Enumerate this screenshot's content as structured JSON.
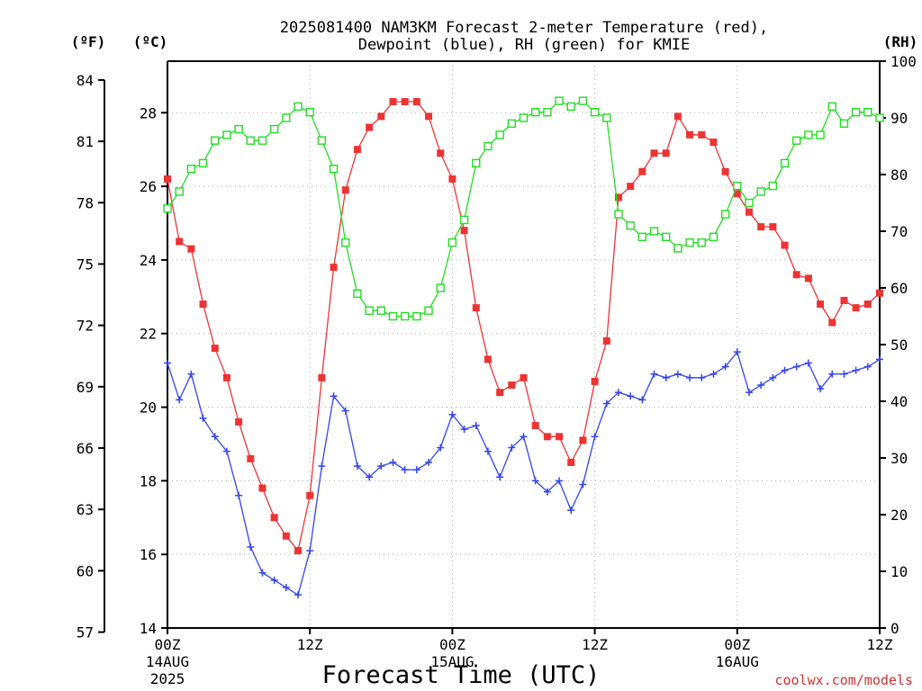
{
  "title_line1": "2025081400 NAM3KM Forecast 2-meter Temperature (red),",
  "title_line2": "Dewpoint (blue), RH (green) for KMIE",
  "unit_f": "(ºF)",
  "unit_c": "(ºC)",
  "unit_rh": "(RH)",
  "xlabel": "Forecast Time (UTC)",
  "credit": "coolwx.com/models",
  "colors": {
    "temperature": "#ee3333",
    "dewpoint": "#3344ee",
    "rh": "#22dd22",
    "grid": "#aaaaaa",
    "axis": "#000000"
  },
  "chart_data": {
    "type": "line",
    "x_unit": "forecast hour",
    "xlim": [
      0,
      60
    ],
    "x_ticks": [
      {
        "hour": 0,
        "label": "00Z",
        "sub1": "14AUG",
        "sub2": "2025"
      },
      {
        "hour": 12,
        "label": "12Z",
        "sub1": "",
        "sub2": ""
      },
      {
        "hour": 24,
        "label": "00Z",
        "sub1": "15AUG",
        "sub2": ""
      },
      {
        "hour": 36,
        "label": "12Z",
        "sub1": "",
        "sub2": ""
      },
      {
        "hour": 48,
        "label": "00Z",
        "sub1": "16AUG",
        "sub2": ""
      },
      {
        "hour": 60,
        "label": "12Z",
        "sub1": "",
        "sub2": ""
      }
    ],
    "ylim_c": [
      14,
      29.4
    ],
    "yticks_c": [
      14,
      16,
      18,
      20,
      22,
      24,
      26,
      28
    ],
    "yticks_f": [
      57,
      60,
      63,
      66,
      69,
      72,
      75,
      78,
      81,
      84
    ],
    "ylim_rh": [
      0,
      100
    ],
    "yticks_rh": [
      0,
      10,
      20,
      30,
      40,
      50,
      60,
      70,
      80,
      90,
      100
    ],
    "grid": true,
    "series": [
      {
        "name": "Temperature",
        "axis": "c",
        "marker": "filled-square",
        "values": [
          26.2,
          24.5,
          24.3,
          22.8,
          21.6,
          20.8,
          19.6,
          18.6,
          17.8,
          17.0,
          16.5,
          16.1,
          17.6,
          20.8,
          23.8,
          25.9,
          27.0,
          27.6,
          27.9,
          28.3,
          28.3,
          28.3,
          27.9,
          26.9,
          26.2,
          24.8,
          22.7,
          21.3,
          20.4,
          20.6,
          20.8,
          19.5,
          19.2,
          19.2,
          18.5,
          19.1,
          20.7,
          21.8,
          25.7,
          26.0,
          26.4,
          26.9,
          26.9,
          27.9,
          27.4,
          27.4,
          27.2,
          26.4,
          25.8,
          25.3,
          24.9,
          24.9,
          24.4,
          23.6,
          23.5,
          22.8,
          22.3,
          22.9,
          22.7,
          22.8,
          23.1
        ]
      },
      {
        "name": "Dewpoint",
        "axis": "c",
        "marker": "plus",
        "values": [
          21.2,
          20.2,
          20.9,
          19.7,
          19.2,
          18.8,
          17.6,
          16.2,
          15.5,
          15.3,
          15.1,
          14.9,
          16.1,
          18.4,
          20.3,
          19.9,
          18.4,
          18.1,
          18.4,
          18.5,
          18.3,
          18.3,
          18.5,
          18.9,
          19.8,
          19.4,
          19.5,
          18.8,
          18.1,
          18.9,
          19.2,
          18.0,
          17.7,
          18.0,
          17.2,
          17.9,
          19.2,
          20.1,
          20.4,
          20.3,
          20.2,
          20.9,
          20.8,
          20.9,
          20.8,
          20.8,
          20.9,
          21.1,
          21.5,
          20.4,
          20.6,
          20.8,
          21.0,
          21.1,
          21.2,
          20.5,
          20.9,
          20.9,
          21.0,
          21.1,
          21.3
        ]
      },
      {
        "name": "RH",
        "axis": "rh",
        "marker": "open-square",
        "values": [
          74,
          77,
          81,
          82,
          86,
          87,
          88,
          86,
          86,
          88,
          90,
          92,
          91,
          86,
          81,
          68,
          59,
          56,
          56,
          55,
          55,
          55,
          56,
          60,
          68,
          72,
          82,
          85,
          87,
          89,
          90,
          91,
          91,
          93,
          92,
          93,
          91,
          90,
          73,
          71,
          69,
          70,
          69,
          67,
          68,
          68,
          69,
          73,
          78,
          75,
          77,
          78,
          82,
          86,
          87,
          87,
          92,
          89,
          91,
          91,
          90
        ]
      }
    ]
  }
}
